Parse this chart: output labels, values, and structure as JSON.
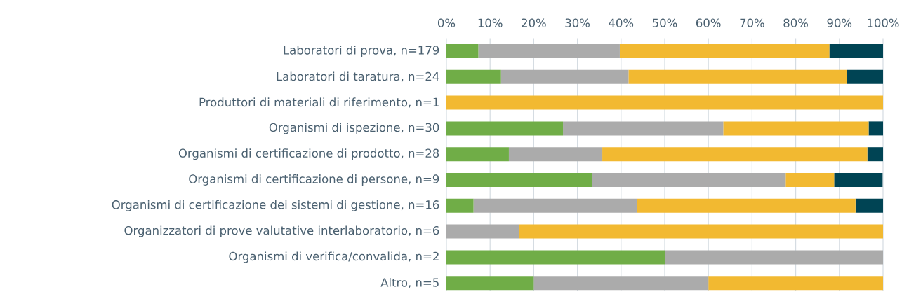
{
  "chart_data": {
    "type": "bar",
    "orientation": "horizontal",
    "stacked": true,
    "grid": "x",
    "categories": [
      "Laboratori di prova, n=179",
      "Laboratori di taratura, n=24",
      "Produttori di materiali di riferimento, n=1",
      "Organismi di ispezione, n=30",
      "Organismi di certificazione di prodotto, n=28",
      "Organismi di certificazione di persone, n=9",
      "Organismi di certificazione dei sistemi di gestione, n=16",
      "Organizzatori di prove valutative interlaboratorio, n=6",
      "Organismi di verifica/convalida, n=2",
      "Altro, n=5"
    ],
    "series": [
      {
        "color": "#70ad47",
        "values": [
          7.3,
          12.5,
          0,
          26.7,
          14.3,
          33.3,
          6.2,
          0,
          50,
          20
        ]
      },
      {
        "color": "#ababab",
        "values": [
          32.4,
          29.2,
          0,
          36.7,
          21.4,
          44.4,
          37.5,
          16.7,
          50,
          40
        ]
      },
      {
        "color": "#f2b931",
        "values": [
          48.0,
          50.0,
          100,
          33.3,
          60.7,
          11.1,
          50,
          83.3,
          0,
          40
        ]
      },
      {
        "color": "#004454",
        "values": [
          12.3,
          8.3,
          0,
          3.3,
          3.6,
          11.1,
          6.3,
          0,
          0,
          0
        ]
      }
    ],
    "xlim": [
      0,
      100
    ],
    "xticks": [
      {
        "value": 0,
        "label": "0%"
      },
      {
        "value": 10,
        "label": "10%"
      },
      {
        "value": 20,
        "label": "20%"
      },
      {
        "value": 30,
        "label": "30%"
      },
      {
        "value": 40,
        "label": "40%"
      },
      {
        "value": 50,
        "label": "50%"
      },
      {
        "value": 60,
        "label": "60%"
      },
      {
        "value": 70,
        "label": "70%"
      },
      {
        "value": 80,
        "label": "80%"
      },
      {
        "value": 90,
        "label": "90%"
      },
      {
        "value": 100,
        "label": "100%"
      }
    ]
  }
}
